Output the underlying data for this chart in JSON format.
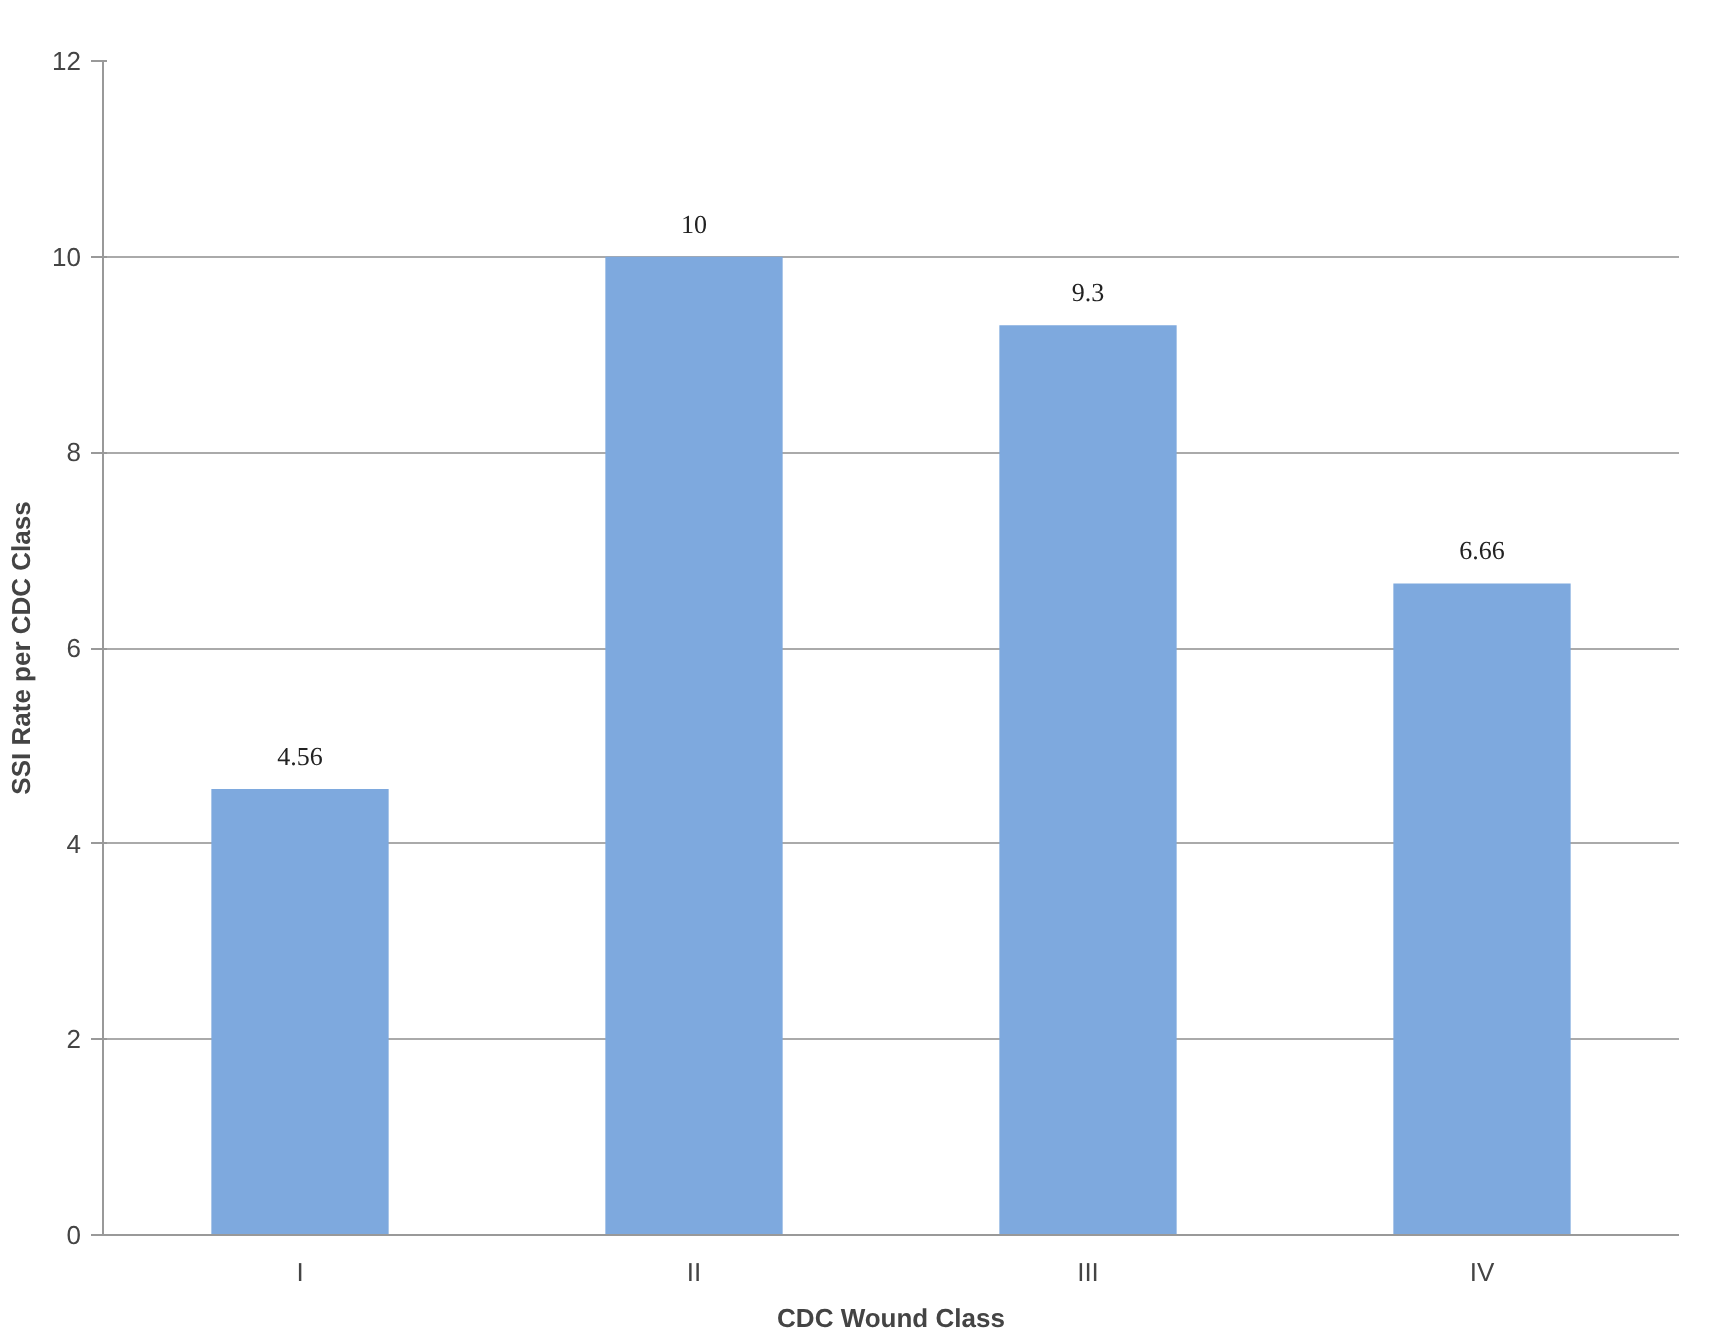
{
  "chart_data": {
    "type": "bar",
    "xlabel": "CDC Wound Class",
    "ylabel": "SSI Rate per CDC Class",
    "categories": [
      "I",
      "II",
      "III",
      "IV"
    ],
    "values": [
      4.56,
      10,
      9.3,
      6.66
    ],
    "color": "#7ea9de",
    "ylim": [
      0,
      12
    ],
    "yticks": [
      0,
      2,
      4,
      6,
      8,
      10,
      12
    ],
    "grid": "y",
    "data_labels": true
  }
}
